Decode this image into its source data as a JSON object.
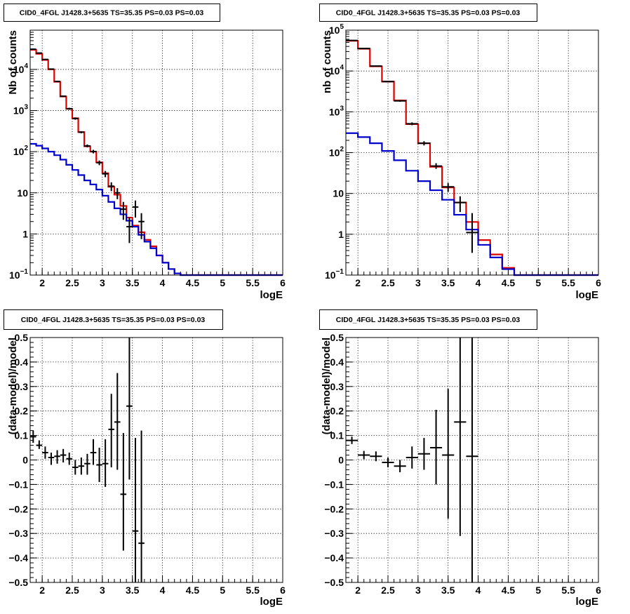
{
  "chart_data": [
    {
      "type": "histogram",
      "title": "CID0_4FGL J1428.3+5635 TS=35.35 PS=0.03 PS=0.03",
      "xlabel": "logE",
      "ylabel": "Nb of counts",
      "xlim": [
        1.8,
        6
      ],
      "ylim": [
        0.1,
        90000
      ],
      "log_y": true,
      "grid": true,
      "x_ticks": [
        2,
        2.5,
        3,
        3.5,
        4,
        4.5,
        5,
        5.5,
        6
      ],
      "x_tick_labels": [
        "2",
        "2.5",
        "3",
        "3.5",
        "4",
        "4.5",
        "5",
        "5.5",
        "6"
      ],
      "y_ticks": [
        0.1,
        1,
        10,
        100,
        1000,
        10000
      ],
      "y_tick_labels": [
        "10^-1",
        "1",
        "10",
        "10^2",
        "10^3",
        "10^4"
      ],
      "bin_edges": [
        1.8,
        1.9,
        2.0,
        2.1,
        2.2,
        2.3,
        2.4,
        2.5,
        2.6,
        2.7,
        2.8,
        2.9,
        3.0,
        3.1,
        3.2,
        3.3,
        3.4,
        3.5,
        3.6,
        3.7,
        3.8,
        3.9,
        4.0,
        4.1,
        4.2,
        4.3,
        4.4,
        4.5,
        6.0
      ],
      "series": [
        {
          "color": "#dd0000",
          "values": [
            30000,
            24000,
            17000,
            10000,
            5000,
            2200,
            1100,
            650,
            300,
            135,
            100,
            55,
            30,
            14,
            9,
            4.8,
            2.5,
            1.6,
            1.1,
            0.72,
            0.5,
            0.3,
            0.2,
            0.14,
            0.11,
            0.1,
            0.1,
            0.1
          ]
        },
        {
          "color": "#0000cc",
          "values": [
            155,
            140,
            120,
            100,
            82,
            64,
            48,
            36,
            27,
            20,
            16,
            12,
            8.5,
            6,
            4.2,
            3,
            2.1,
            1.5,
            0.95,
            0.65,
            0.45,
            0.3,
            0.2,
            0.14,
            0.11,
            0.1,
            0.1,
            0.1
          ]
        }
      ],
      "points": [
        {
          "x": 1.85,
          "y": 31000,
          "lo": 30000,
          "hi": 32000
        },
        {
          "x": 1.95,
          "y": 25000,
          "lo": 24000,
          "hi": 26000
        },
        {
          "x": 2.05,
          "y": 17500,
          "lo": 17000,
          "hi": 18000
        },
        {
          "x": 2.15,
          "y": 10200,
          "lo": 9900,
          "hi": 10500
        },
        {
          "x": 2.25,
          "y": 5100,
          "lo": 4900,
          "hi": 5300
        },
        {
          "x": 2.35,
          "y": 2230,
          "lo": 2150,
          "hi": 2300
        },
        {
          "x": 2.45,
          "y": 1110,
          "lo": 1050,
          "hi": 1170
        },
        {
          "x": 2.55,
          "y": 640,
          "lo": 600,
          "hi": 680
        },
        {
          "x": 2.65,
          "y": 298,
          "lo": 280,
          "hi": 316
        },
        {
          "x": 2.75,
          "y": 138,
          "lo": 127,
          "hi": 150
        },
        {
          "x": 2.85,
          "y": 101,
          "lo": 91,
          "hi": 111
        },
        {
          "x": 2.95,
          "y": 54,
          "lo": 47,
          "hi": 61
        },
        {
          "x": 3.05,
          "y": 29,
          "lo": 24,
          "hi": 34
        },
        {
          "x": 3.15,
          "y": 14.5,
          "lo": 11,
          "hi": 18
        },
        {
          "x": 3.25,
          "y": 10,
          "lo": 7,
          "hi": 13
        },
        {
          "x": 3.35,
          "y": 4,
          "lo": 2.2,
          "hi": 6
        },
        {
          "x": 3.45,
          "y": 1.5,
          "lo": 0.6,
          "hi": 2.5
        },
        {
          "x": 3.55,
          "y": 4.5,
          "lo": 2.5,
          "hi": 6.5
        },
        {
          "x": 3.65,
          "y": 2,
          "lo": 0.75,
          "hi": 3.2
        }
      ]
    },
    {
      "type": "histogram",
      "title": "CID0_4FGL J1428.3+5635 TS=35.35 PS=0.03 PS=0.03",
      "xlabel": "logE",
      "ylabel": "nb of counts",
      "xlim": [
        1.8,
        6
      ],
      "ylim": [
        0.1,
        100000
      ],
      "log_y": true,
      "grid": true,
      "x_ticks": [
        2,
        2.5,
        3,
        3.5,
        4,
        4.5,
        5,
        5.5,
        6
      ],
      "x_tick_labels": [
        "2",
        "2.5",
        "3",
        "3.5",
        "4",
        "4.5",
        "5",
        "5.5",
        "6"
      ],
      "y_ticks": [
        0.1,
        1,
        10,
        100,
        1000,
        10000,
        100000
      ],
      "y_tick_labels": [
        "10^-1",
        "1",
        "10",
        "10^2",
        "10^3",
        "10^4",
        "10^5"
      ],
      "bin_edges": [
        1.8,
        2.0,
        2.2,
        2.4,
        2.6,
        2.8,
        3.0,
        3.2,
        3.4,
        3.6,
        3.8,
        4.0,
        4.2,
        4.4,
        4.6,
        6.0
      ],
      "series": [
        {
          "color": "#dd0000",
          "values": [
            55000,
            35000,
            13000,
            5500,
            1900,
            500,
            170,
            45,
            14,
            6,
            2,
            0.72,
            0.32,
            0.15,
            0.1
          ]
        },
        {
          "color": "#0000cc",
          "values": [
            300,
            240,
            170,
            110,
            65,
            36,
            20,
            12,
            7,
            3,
            1.3,
            0.55,
            0.27,
            0.14,
            0.1
          ]
        }
      ],
      "points": [
        {
          "x": 1.9,
          "y": 56000,
          "lo": 54000,
          "hi": 58000
        },
        {
          "x": 2.1,
          "y": 35500,
          "lo": 34500,
          "hi": 36500
        },
        {
          "x": 2.3,
          "y": 13200,
          "lo": 12800,
          "hi": 13600
        },
        {
          "x": 2.5,
          "y": 5500,
          "lo": 5300,
          "hi": 5700
        },
        {
          "x": 2.7,
          "y": 1850,
          "lo": 1760,
          "hi": 1940
        },
        {
          "x": 2.9,
          "y": 510,
          "lo": 470,
          "hi": 550
        },
        {
          "x": 3.1,
          "y": 170,
          "lo": 150,
          "hi": 190
        },
        {
          "x": 3.3,
          "y": 47,
          "lo": 40,
          "hi": 55
        },
        {
          "x": 3.5,
          "y": 14.5,
          "lo": 11,
          "hi": 18
        },
        {
          "x": 3.7,
          "y": 6,
          "lo": 3.5,
          "hi": 8.5
        },
        {
          "x": 3.9,
          "y": 1.1,
          "lo": 0.35,
          "hi": 3.3
        }
      ]
    },
    {
      "type": "scatter",
      "title": "CID0_4FGL J1428.3+5635 TS=35.35 PS=0.03 PS=0.03",
      "xlabel": "logE",
      "ylabel": "(data-model)/model",
      "xlim": [
        1.8,
        6
      ],
      "ylim": [
        -0.5,
        0.5
      ],
      "grid": true,
      "x_ticks": [
        2,
        2.5,
        3,
        3.5,
        4,
        4.5,
        5,
        5.5,
        6
      ],
      "x_tick_labels": [
        "2",
        "2.5",
        "3",
        "3.5",
        "4",
        "4.5",
        "5",
        "5.5",
        "6"
      ],
      "y_ticks": [
        -0.5,
        -0.4,
        -0.3,
        -0.2,
        -0.1,
        0,
        0.1,
        0.2,
        0.3,
        0.4,
        0.5
      ],
      "y_tick_labels": [
        "−0.5",
        "−0.4",
        "−0.3",
        "−0.2",
        "−0.1",
        "0",
        "0.1",
        "0.2",
        "0.3",
        "0.4",
        "0.5"
      ],
      "points": [
        {
          "x": 1.85,
          "y": 0.095,
          "lo": 0.07,
          "hi": 0.12,
          "xerr": 0.05
        },
        {
          "x": 1.95,
          "y": 0.06,
          "lo": 0.045,
          "hi": 0.08,
          "xerr": 0.05
        },
        {
          "x": 2.05,
          "y": 0.03,
          "lo": 0.005,
          "hi": 0.055,
          "xerr": 0.05
        },
        {
          "x": 2.15,
          "y": 0.01,
          "lo": -0.02,
          "hi": 0.03,
          "xerr": 0.05
        },
        {
          "x": 2.25,
          "y": 0.015,
          "lo": -0.015,
          "hi": 0.04,
          "xerr": 0.05
        },
        {
          "x": 2.35,
          "y": 0.02,
          "lo": -0.01,
          "hi": 0.045,
          "xerr": 0.05
        },
        {
          "x": 2.45,
          "y": 0.005,
          "lo": -0.02,
          "hi": 0.03,
          "xerr": 0.05
        },
        {
          "x": 2.55,
          "y": -0.03,
          "lo": -0.06,
          "hi": 0.0,
          "xerr": 0.05
        },
        {
          "x": 2.65,
          "y": -0.025,
          "lo": -0.06,
          "hi": 0.01,
          "xerr": 0.05
        },
        {
          "x": 2.75,
          "y": -0.015,
          "lo": -0.06,
          "hi": 0.025,
          "xerr": 0.05
        },
        {
          "x": 2.85,
          "y": 0.03,
          "lo": -0.02,
          "hi": 0.085,
          "xerr": 0.05
        },
        {
          "x": 2.95,
          "y": -0.02,
          "lo": -0.09,
          "hi": 0.05,
          "xerr": 0.05
        },
        {
          "x": 3.05,
          "y": -0.015,
          "lo": -0.11,
          "hi": 0.085,
          "xerr": 0.05
        },
        {
          "x": 3.15,
          "y": 0.125,
          "lo": -0.03,
          "hi": 0.27,
          "xerr": 0.05
        },
        {
          "x": 3.25,
          "y": 0.155,
          "lo": -0.04,
          "hi": 0.355,
          "xerr": 0.05
        },
        {
          "x": 3.35,
          "y": -0.14,
          "lo": -0.37,
          "hi": 0.11,
          "xerr": 0.05
        },
        {
          "x": 3.45,
          "y": 0.22,
          "lo": -0.08,
          "hi": 0.5,
          "xerr": 0.05
        },
        {
          "x": 3.55,
          "y": -0.29,
          "lo": -0.5,
          "hi": 0.09,
          "xerr": 0.05
        },
        {
          "x": 3.65,
          "y": -0.34,
          "lo": -0.5,
          "hi": 0.12,
          "xerr": 0.05
        }
      ]
    },
    {
      "type": "scatter",
      "title": "CID0_4FGL J1428.3+5635 TS=35.35 PS=0.03 PS=0.03",
      "xlabel": "logE",
      "ylabel": "(data-model)/model",
      "xlim": [
        1.8,
        6
      ],
      "ylim": [
        -0.5,
        0.5
      ],
      "grid": true,
      "x_ticks": [
        2,
        2.5,
        3,
        3.5,
        4,
        4.5,
        5,
        5.5,
        6
      ],
      "x_tick_labels": [
        "2",
        "2.5",
        "3",
        "3.5",
        "4",
        "4.5",
        "5",
        "5.5",
        "6"
      ],
      "y_ticks": [
        -0.5,
        -0.4,
        -0.3,
        -0.2,
        -0.1,
        0,
        0.1,
        0.2,
        0.3,
        0.4,
        0.5
      ],
      "y_tick_labels": [
        "−0.5",
        "−0.4",
        "−0.3",
        "−0.2",
        "−0.1",
        "0",
        "0.1",
        "0.2",
        "0.3",
        "0.4",
        "0.5"
      ],
      "points": [
        {
          "x": 1.9,
          "y": 0.08,
          "lo": 0.065,
          "hi": 0.095,
          "xerr": 0.1
        },
        {
          "x": 2.1,
          "y": 0.02,
          "lo": 0.003,
          "hi": 0.037,
          "xerr": 0.1
        },
        {
          "x": 2.3,
          "y": 0.015,
          "lo": -0.005,
          "hi": 0.035,
          "xerr": 0.1
        },
        {
          "x": 2.5,
          "y": -0.01,
          "lo": -0.03,
          "hi": 0.01,
          "xerr": 0.1
        },
        {
          "x": 2.7,
          "y": -0.025,
          "lo": -0.05,
          "hi": 0.0,
          "xerr": 0.1
        },
        {
          "x": 2.9,
          "y": 0.01,
          "lo": -0.035,
          "hi": 0.055,
          "xerr": 0.1
        },
        {
          "x": 3.1,
          "y": 0.025,
          "lo": -0.04,
          "hi": 0.09,
          "xerr": 0.1
        },
        {
          "x": 3.3,
          "y": 0.05,
          "lo": -0.1,
          "hi": 0.205,
          "xerr": 0.1
        },
        {
          "x": 3.5,
          "y": 0.02,
          "lo": -0.24,
          "hi": 0.29,
          "xerr": 0.1
        },
        {
          "x": 3.7,
          "y": 0.155,
          "lo": -0.31,
          "hi": 0.5,
          "xerr": 0.1
        },
        {
          "x": 3.9,
          "y": 0.015,
          "lo": -0.5,
          "hi": 0.5,
          "xerr": 0.1
        }
      ]
    }
  ]
}
